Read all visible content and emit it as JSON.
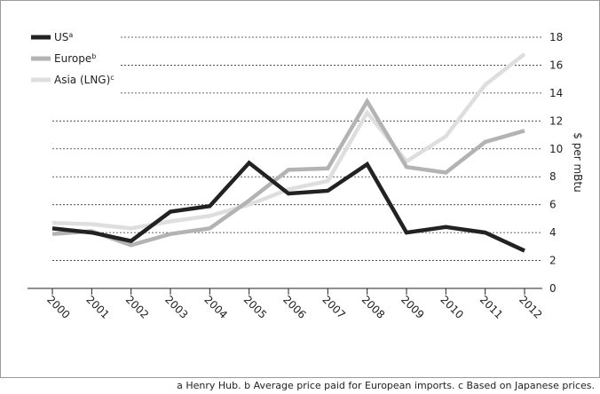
{
  "chart_data": {
    "type": "line",
    "title": "",
    "xlabel": "",
    "ylabel": "$ per mBtu",
    "x": [
      "2000",
      "2001",
      "2002",
      "2003",
      "2004",
      "2005",
      "2006",
      "2007",
      "2008",
      "2009",
      "2010",
      "2011",
      "2012"
    ],
    "ylim": [
      0,
      18
    ],
    "yticks": [
      0,
      2,
      4,
      6,
      8,
      10,
      12,
      14,
      16,
      18
    ],
    "grid": "horizontal dashed",
    "legend_position": "top-left",
    "series": [
      {
        "name": "US",
        "sup": "a",
        "color": "#222222",
        "values": [
          4.3,
          4.0,
          3.4,
          5.5,
          5.9,
          9.0,
          6.8,
          7.0,
          8.9,
          4.0,
          4.4,
          4.0,
          2.7
        ]
      },
      {
        "name": "Europe",
        "sup": "b",
        "color": "#b3b3b3",
        "values": [
          3.9,
          4.1,
          3.1,
          3.9,
          4.3,
          6.3,
          8.5,
          8.6,
          13.4,
          8.7,
          8.3,
          10.5,
          11.3
        ]
      },
      {
        "name": "Asia (LNG)",
        "sup": "c",
        "color": "#dedede",
        "values": [
          4.7,
          4.6,
          4.3,
          4.8,
          5.2,
          6.0,
          7.1,
          7.7,
          12.6,
          9.1,
          10.9,
          14.6,
          16.8
        ]
      }
    ]
  },
  "footnote": "a Henry Hub.  b Average price paid for European imports.  c Based on Japanese prices."
}
